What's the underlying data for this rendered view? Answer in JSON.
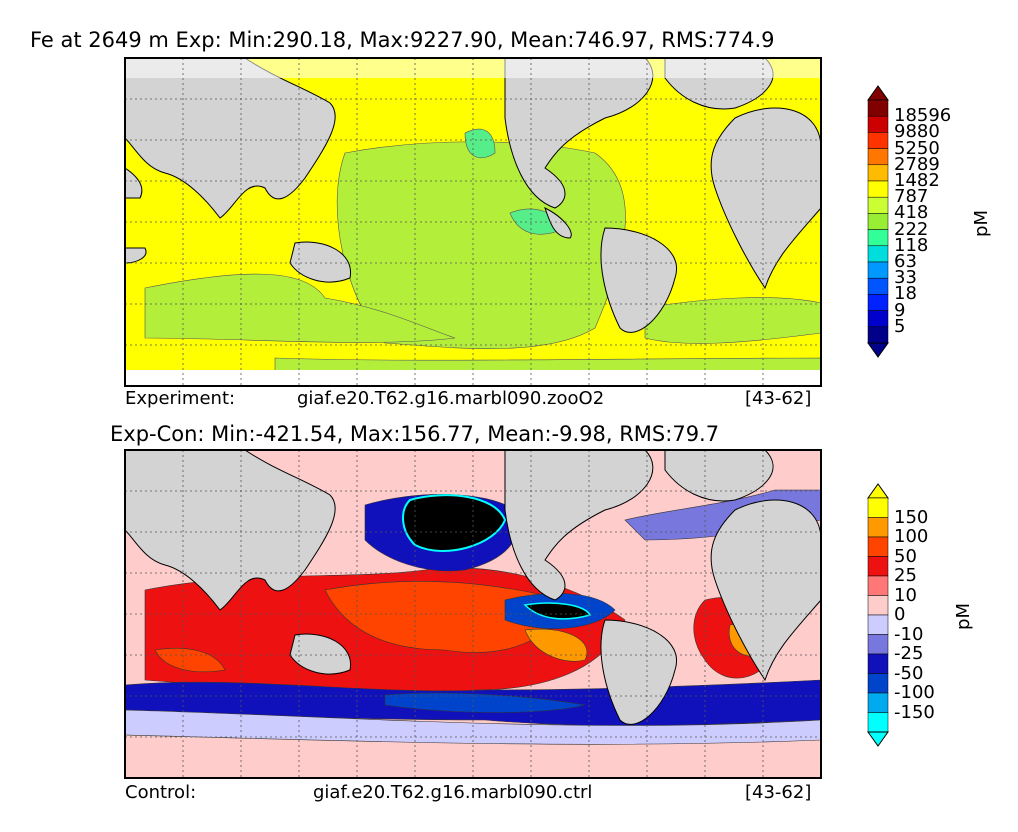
{
  "chart_data": [
    {
      "type": "heatmap",
      "title": "Fe at 2649 m Exp: Min:290.18, Max:9227.90, Mean:746.97, RMS:774.9",
      "caption_left": "Experiment:",
      "caption_center": "giaf.e20.T62.g16.marbl090.zooO2",
      "caption_right": "[43-62]",
      "colorbar_unit": "pM",
      "colorbar_levels": [
        "18596",
        "9880",
        "5250",
        "2789",
        "1482",
        "787",
        "418",
        "222",
        "118",
        "63",
        "33",
        "18",
        "9",
        "5"
      ],
      "colorbar_colors": [
        "#800000",
        "#cc0000",
        "#ff3300",
        "#ff7700",
        "#ffbb00",
        "#ffff00",
        "#ccff33",
        "#99ee33",
        "#33ff99",
        "#00dddd",
        "#0099ff",
        "#0055ff",
        "#0022ff",
        "#0000cc",
        "#000088"
      ],
      "stats": {
        "min": 290.18,
        "max": 9227.9,
        "mean": 746.97,
        "rms": 774.9
      }
    },
    {
      "type": "heatmap",
      "title": "Exp-Con: Min:-421.54, Max:156.77, Mean:-9.98, RMS:79.7",
      "caption_left": "Control:",
      "caption_center": "giaf.e20.T62.g16.marbl090.ctrl",
      "caption_right": "[43-62]",
      "colorbar_unit": "pM",
      "colorbar_levels": [
        "150",
        "100",
        "50",
        "25",
        "10",
        "0",
        "-10",
        "-25",
        "-50",
        "-100",
        "-150"
      ],
      "colorbar_colors": [
        "#ffff00",
        "#ff9900",
        "#ff4400",
        "#ee1111",
        "#ff7777",
        "#ffcccc",
        "#ccccff",
        "#7777dd",
        "#1111bb",
        "#0044cc",
        "#00aaee",
        "#00ffff"
      ],
      "stats": {
        "min": -421.54,
        "max": 156.77,
        "mean": -9.98,
        "rms": 79.7
      }
    }
  ],
  "colors": {
    "land": "#d3d3d3",
    "ocean_white": "#ffffff",
    "black": "#000000"
  }
}
